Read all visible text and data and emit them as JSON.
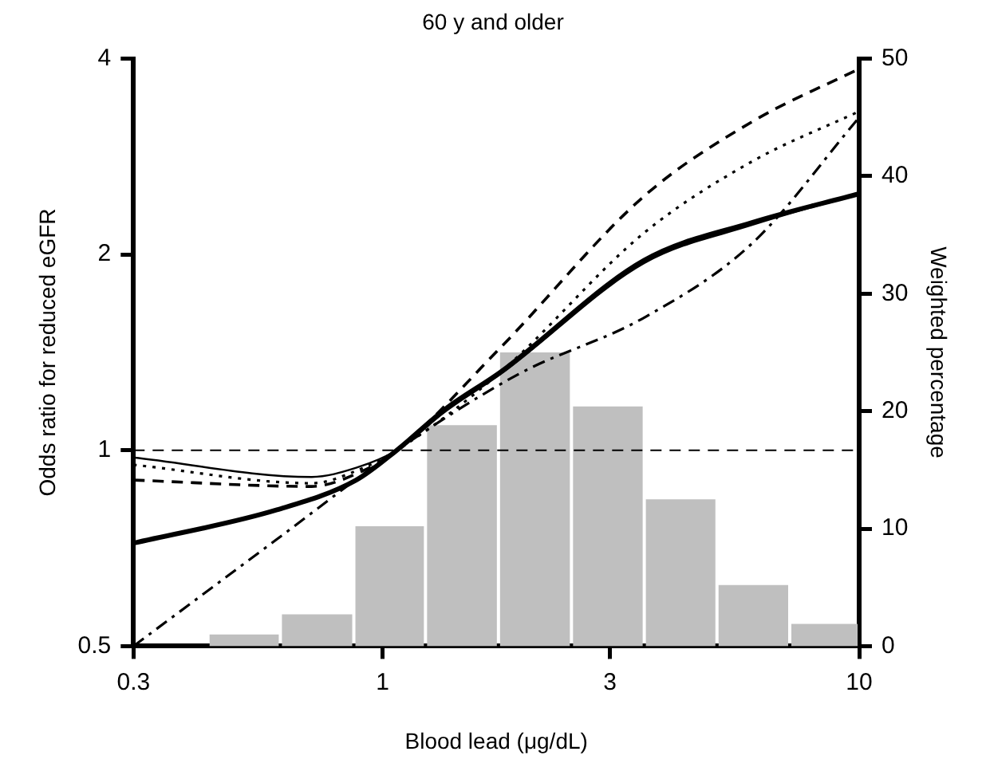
{
  "chart_data": {
    "type": "line",
    "title": "60 y and older",
    "xlabel": "Blood lead (μg/dL)",
    "ylabel": "Odds ratio for reduced eGFR",
    "y2label": "Weighted percentage",
    "log": "xy",
    "xlim": [
      0.3,
      10
    ],
    "xticks": [
      0.3,
      1,
      3,
      10
    ],
    "ylim": [
      0.5,
      4
    ],
    "yticks": [
      0.5,
      1,
      2,
      4
    ],
    "y2lim": [
      0,
      50
    ],
    "y2ticks": [
      0,
      10,
      20,
      30,
      40,
      50
    ],
    "grid": false,
    "legend": false,
    "marker": "none",
    "ref_lines": [
      {
        "axis": "y",
        "value": 1,
        "line_style": "dashed",
        "color": "#000000"
      }
    ],
    "series": [
      {
        "type": "histogram",
        "axis": "y2",
        "color": "#bfbfbf",
        "bins": [
          0.43,
          0.61,
          0.87,
          1.23,
          1.75,
          2.49,
          3.54,
          5.03,
          7.15,
          10
        ],
        "values": [
          1,
          2.7,
          10.2,
          18.8,
          25,
          20.4,
          12.5,
          5.2,
          1.9
        ]
      },
      {
        "color": "#000000",
        "line_style": "solid",
        "x": [
          0.3,
          0.6,
          0.88,
          1.07,
          1.36,
          1.77,
          3.54,
          5.96,
          10
        ],
        "values": [
          0.72,
          0.81,
          0.9,
          1.0,
          1.16,
          1.32,
          1.96,
          2.24,
          2.48
        ]
      },
      {
        "color": "#000000",
        "line_style": "solid",
        "x": [
          0.3,
          0.71,
          0.88,
          1.07,
          1.36,
          1.77,
          3.54,
          5.96,
          10
        ],
        "values": [
          0.975,
          0.91,
          0.94,
          1.0,
          1.15,
          1.31,
          1.94,
          2.22,
          2.48
        ]
      },
      {
        "color": "#000000",
        "line_style": "dotted",
        "x": [
          0.3,
          0.71,
          0.88,
          1.07,
          1.77,
          3.54,
          5.96,
          10
        ],
        "values": [
          0.95,
          0.89,
          0.93,
          1.0,
          1.32,
          2.16,
          2.78,
          3.32
        ]
      },
      {
        "color": "#000000",
        "line_style": "dashed",
        "x": [
          0.3,
          0.71,
          0.88,
          1.07,
          1.77,
          3.54,
          5.96,
          10
        ],
        "values": [
          0.9,
          0.88,
          0.92,
          1.0,
          1.44,
          2.46,
          3.2,
          3.86
        ]
      },
      {
        "color": "#000000",
        "line_style": "dashdot",
        "x": [
          0.3,
          0.6,
          1.07,
          1.93,
          3.54,
          5.96,
          10
        ],
        "values": [
          0.5,
          0.73,
          1.0,
          1.31,
          1.6,
          2.08,
          3.25
        ]
      }
    ]
  }
}
